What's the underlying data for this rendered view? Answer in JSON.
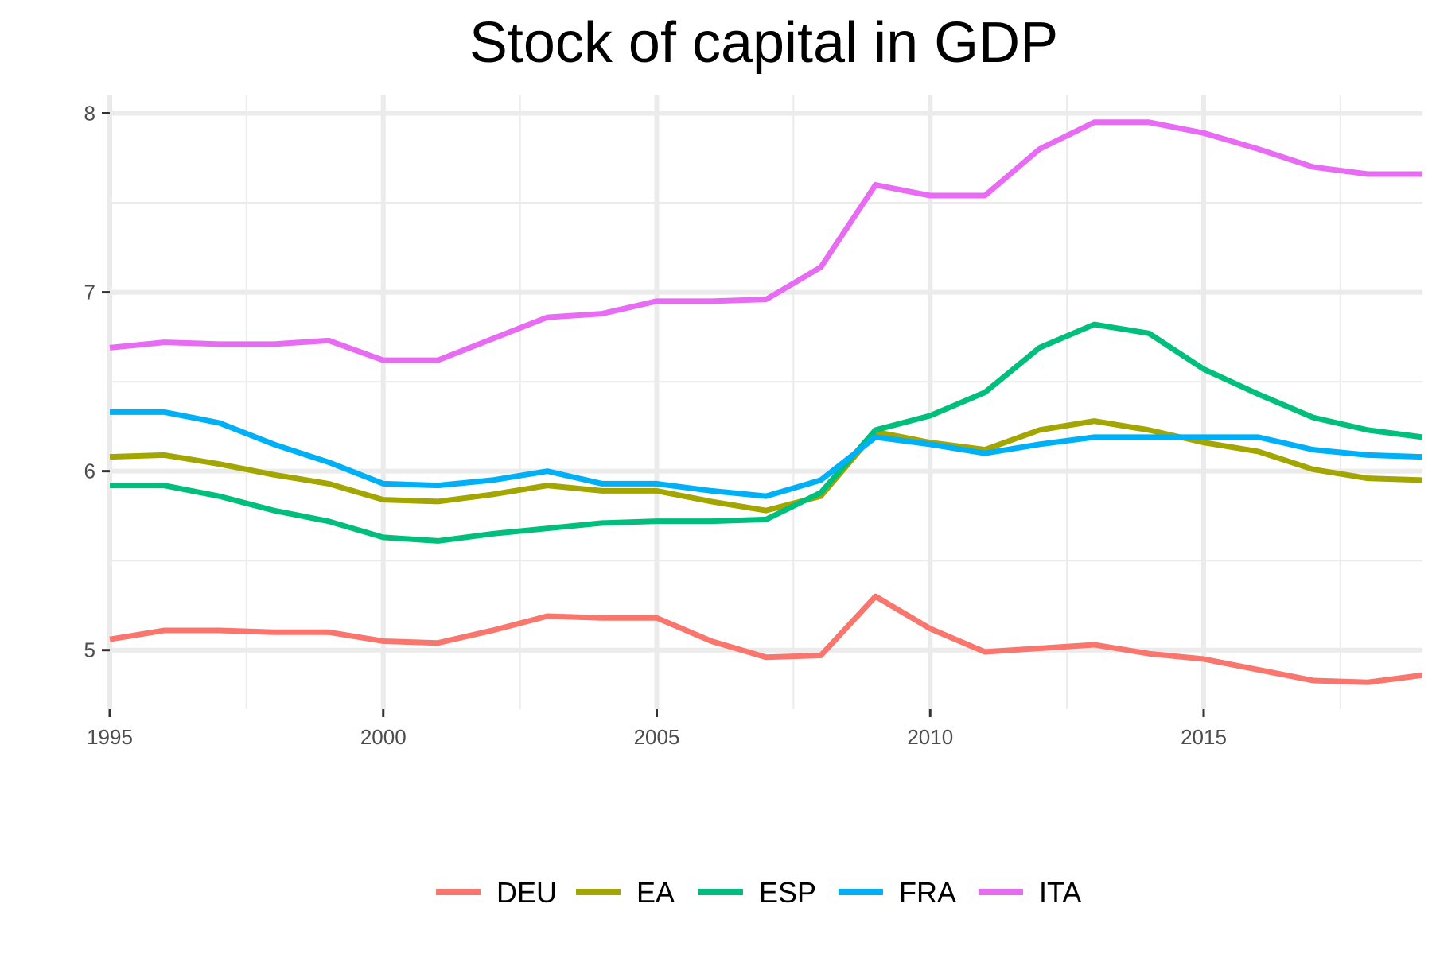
{
  "chart_data": {
    "type": "line",
    "title": "Stock of capital in GDP",
    "xlabel": "",
    "ylabel": "",
    "xlim": [
      1995,
      2019
    ],
    "ylim": [
      4.67,
      8.1
    ],
    "x_ticks": [
      1995,
      2000,
      2005,
      2010,
      2015
    ],
    "x_tick_labels": [
      "1995",
      "2000",
      "2005",
      "2010",
      "2015"
    ],
    "x_minor_ticks": [
      1997.5,
      2002.5,
      2007.5,
      2012.5,
      2017.5
    ],
    "y_ticks": [
      5,
      6,
      7,
      8
    ],
    "y_tick_labels": [
      "5",
      "6",
      "7",
      "8"
    ],
    "y_minor_ticks": [
      5.5,
      6.5,
      7.5
    ],
    "grid": true,
    "legend_position": "bottom",
    "x": [
      1995,
      1996,
      1997,
      1998,
      1999,
      2000,
      2001,
      2002,
      2003,
      2004,
      2005,
      2006,
      2007,
      2008,
      2009,
      2010,
      2011,
      2012,
      2013,
      2014,
      2015,
      2016,
      2017,
      2018,
      2019
    ],
    "series": [
      {
        "name": "DEU",
        "color": "#F8766D",
        "values": [
          5.06,
          5.11,
          5.11,
          5.1,
          5.1,
          5.05,
          5.04,
          5.11,
          5.19,
          5.18,
          5.18,
          5.05,
          4.96,
          4.97,
          5.3,
          5.12,
          4.99,
          5.01,
          5.03,
          4.98,
          4.95,
          4.89,
          4.83,
          4.82,
          4.86
        ]
      },
      {
        "name": "EA",
        "color": "#A3A500",
        "values": [
          6.08,
          6.09,
          6.04,
          5.98,
          5.93,
          5.84,
          5.83,
          5.87,
          5.92,
          5.89,
          5.89,
          5.83,
          5.78,
          5.86,
          6.22,
          6.16,
          6.12,
          6.23,
          6.28,
          6.23,
          6.16,
          6.11,
          6.01,
          5.96,
          5.95
        ]
      },
      {
        "name": "ESP",
        "color": "#00BF7D",
        "values": [
          5.92,
          5.92,
          5.86,
          5.78,
          5.72,
          5.63,
          5.61,
          5.65,
          5.68,
          5.71,
          5.72,
          5.72,
          5.73,
          5.88,
          6.23,
          6.31,
          6.44,
          6.69,
          6.82,
          6.77,
          6.57,
          6.43,
          6.3,
          6.23,
          6.19
        ]
      },
      {
        "name": "FRA",
        "color": "#00B0F6",
        "values": [
          6.33,
          6.33,
          6.27,
          6.15,
          6.05,
          5.93,
          5.92,
          5.95,
          6.0,
          5.93,
          5.93,
          5.89,
          5.86,
          5.95,
          6.19,
          6.15,
          6.1,
          6.15,
          6.19,
          6.19,
          6.19,
          6.19,
          6.12,
          6.09,
          6.08
        ]
      },
      {
        "name": "ITA",
        "color": "#E76BF3",
        "values": [
          6.69,
          6.72,
          6.71,
          6.71,
          6.73,
          6.62,
          6.62,
          6.74,
          6.86,
          6.88,
          6.95,
          6.95,
          6.96,
          7.14,
          7.6,
          7.54,
          7.54,
          7.8,
          7.95,
          7.95,
          7.89,
          7.8,
          7.7,
          7.66,
          7.66
        ]
      }
    ]
  }
}
